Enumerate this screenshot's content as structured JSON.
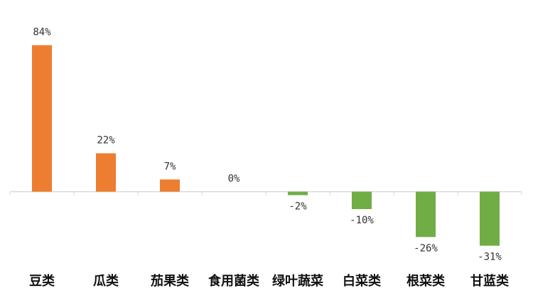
{
  "chart_data": {
    "type": "bar",
    "title": "",
    "xlabel": "",
    "ylabel": "",
    "categories": [
      "豆类",
      "瓜类",
      "茄果类",
      "食用菌类",
      "绿叶蔬菜",
      "白菜类",
      "根菜类",
      "甘蓝类"
    ],
    "values": [
      84,
      22,
      7,
      0,
      -2,
      -10,
      -26,
      -31
    ],
    "value_labels": [
      "84%",
      "22%",
      "7%",
      "0%",
      "-2%",
      "-10%",
      "-26%",
      "-31%"
    ],
    "ylim": [
      -31,
      84
    ],
    "unit": "%",
    "grid": false,
    "legend": "none",
    "colors": {
      "positive": "#ed7d31",
      "negative": "#70ad47",
      "axis": "#d9d9d9",
      "text": "#333333"
    }
  }
}
